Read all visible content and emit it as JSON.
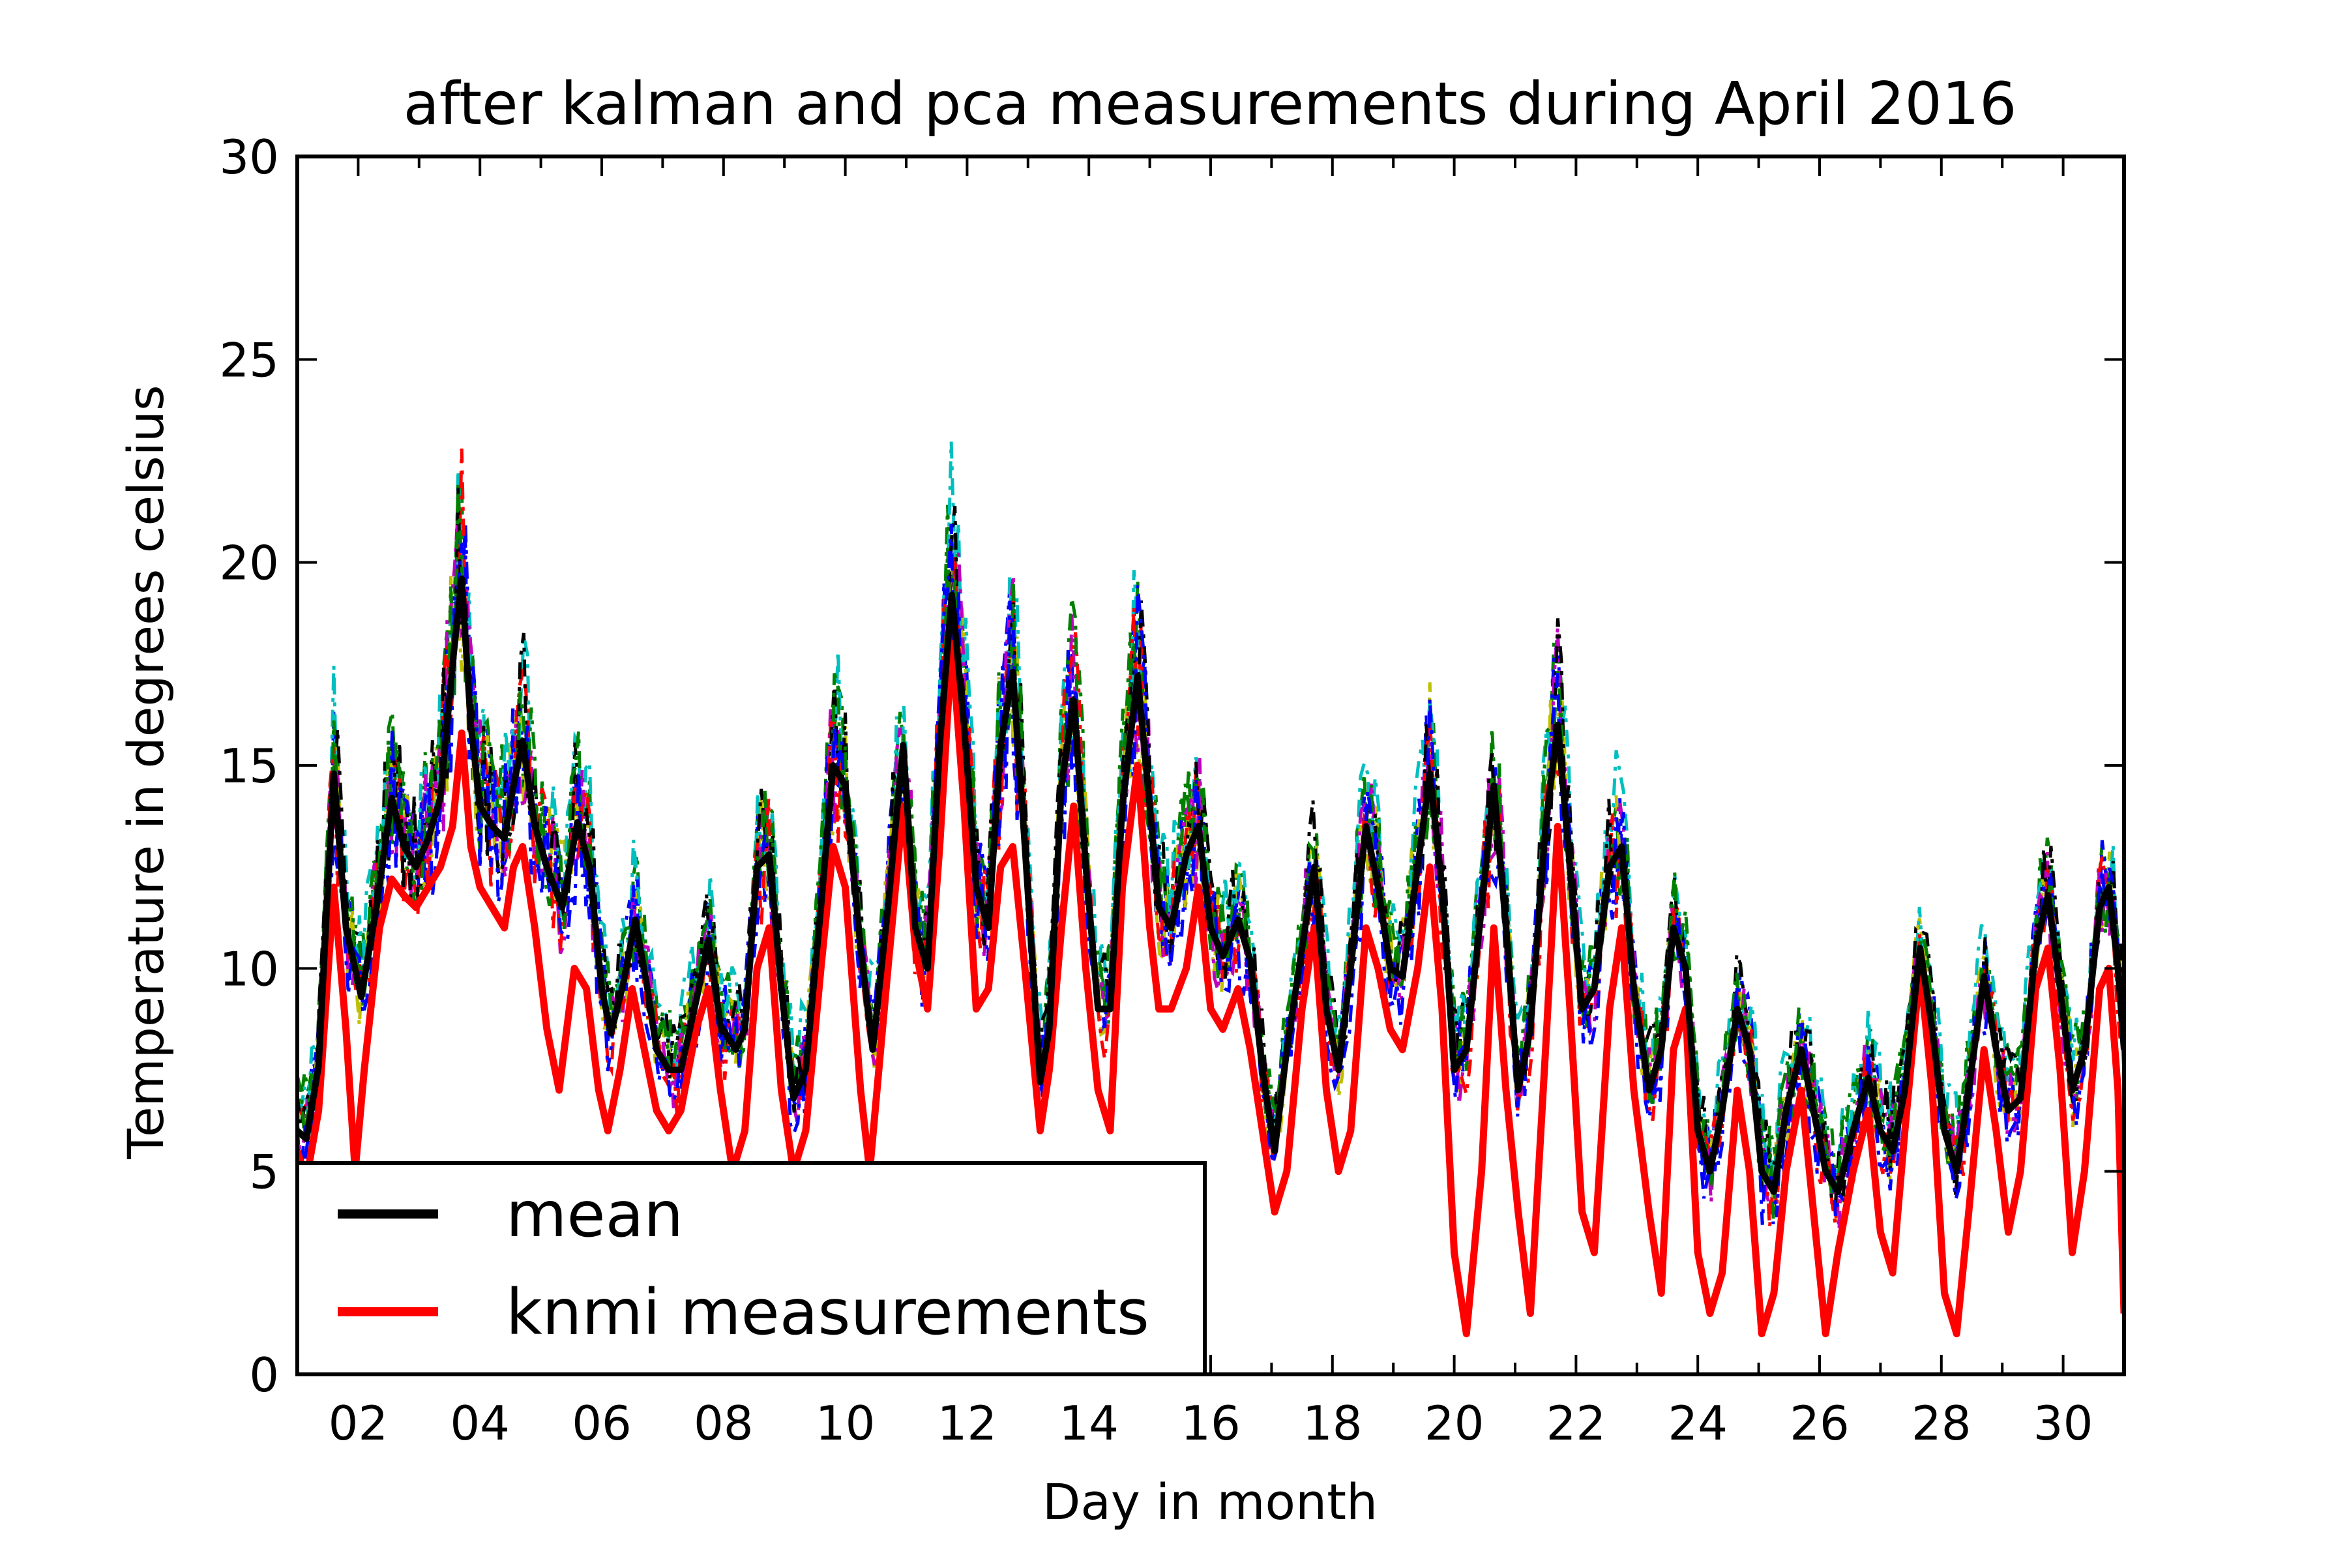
{
  "chart_data": {
    "type": "line",
    "title": "after kalman and pca measurements during April 2016",
    "xlabel": "Day in month",
    "ylabel": "Temperature in degrees celsius",
    "xlim": [
      1.0,
      31.0
    ],
    "ylim": [
      0,
      30
    ],
    "x_ticks": [
      "02",
      "04",
      "06",
      "08",
      "10",
      "12",
      "14",
      "16",
      "18",
      "20",
      "22",
      "24",
      "26",
      "28",
      "30"
    ],
    "y_ticks": [
      "0",
      "5",
      "10",
      "15",
      "20",
      "25",
      "30"
    ],
    "legend": {
      "placement": "lower-left"
    },
    "grid": false,
    "series": [
      {
        "name": "mean",
        "color": "#000000",
        "style": "solid",
        "points": [
          [
            1.0,
            6.0
          ],
          [
            1.15,
            5.8
          ],
          [
            1.35,
            7.6
          ],
          [
            1.6,
            14.8
          ],
          [
            1.8,
            11.0
          ],
          [
            2.05,
            9.3
          ],
          [
            2.3,
            11.5
          ],
          [
            2.55,
            14.2
          ],
          [
            2.75,
            13.0
          ],
          [
            2.95,
            12.5
          ],
          [
            3.15,
            13.2
          ],
          [
            3.35,
            14.2
          ],
          [
            3.55,
            17.5
          ],
          [
            3.7,
            19.6
          ],
          [
            3.85,
            16.0
          ],
          [
            4.0,
            14.0
          ],
          [
            4.2,
            13.5
          ],
          [
            4.4,
            13.2
          ],
          [
            4.55,
            14.5
          ],
          [
            4.7,
            15.6
          ],
          [
            4.9,
            13.5
          ],
          [
            5.1,
            12.5
          ],
          [
            5.35,
            11.5
          ],
          [
            5.6,
            13.6
          ],
          [
            5.8,
            12.5
          ],
          [
            6.0,
            9.5
          ],
          [
            6.15,
            8.4
          ],
          [
            6.35,
            9.6
          ],
          [
            6.55,
            11.2
          ],
          [
            6.75,
            9.5
          ],
          [
            6.9,
            8.0
          ],
          [
            7.1,
            7.5
          ],
          [
            7.3,
            7.5
          ],
          [
            7.55,
            9.2
          ],
          [
            7.75,
            10.7
          ],
          [
            7.95,
            8.6
          ],
          [
            8.2,
            8.0
          ],
          [
            8.35,
            8.5
          ],
          [
            8.55,
            12.5
          ],
          [
            8.75,
            12.8
          ],
          [
            8.95,
            9.5
          ],
          [
            9.15,
            6.8
          ],
          [
            9.35,
            7.5
          ],
          [
            9.6,
            11.5
          ],
          [
            9.8,
            15.0
          ],
          [
            10.0,
            14.5
          ],
          [
            10.25,
            10.5
          ],
          [
            10.45,
            8.0
          ],
          [
            10.7,
            11.5
          ],
          [
            10.95,
            15.5
          ],
          [
            11.15,
            11.0
          ],
          [
            11.35,
            10.0
          ],
          [
            11.55,
            15.5
          ],
          [
            11.75,
            19.2
          ],
          [
            11.95,
            16.0
          ],
          [
            12.15,
            12.0
          ],
          [
            12.35,
            11.0
          ],
          [
            12.55,
            15.5
          ],
          [
            12.75,
            17.3
          ],
          [
            12.95,
            13.0
          ],
          [
            13.2,
            7.2
          ],
          [
            13.35,
            8.5
          ],
          [
            13.55,
            14.5
          ],
          [
            13.75,
            16.6
          ],
          [
            13.95,
            12.5
          ],
          [
            14.15,
            9.0
          ],
          [
            14.35,
            9.0
          ],
          [
            14.55,
            14.0
          ],
          [
            14.8,
            17.2
          ],
          [
            15.0,
            14.0
          ],
          [
            15.15,
            11.5
          ],
          [
            15.35,
            11.0
          ],
          [
            15.6,
            12.8
          ],
          [
            15.8,
            13.5
          ],
          [
            16.0,
            11.0
          ],
          [
            16.2,
            10.3
          ],
          [
            16.45,
            11.2
          ],
          [
            16.65,
            10.2
          ],
          [
            16.85,
            7.5
          ],
          [
            17.05,
            5.5
          ],
          [
            17.25,
            8.0
          ],
          [
            17.5,
            10.5
          ],
          [
            17.7,
            12.5
          ],
          [
            17.9,
            9.0
          ],
          [
            18.1,
            7.5
          ],
          [
            18.3,
            10.0
          ],
          [
            18.55,
            13.5
          ],
          [
            18.75,
            12.0
          ],
          [
            18.95,
            10.0
          ],
          [
            19.15,
            9.8
          ],
          [
            19.4,
            12.5
          ],
          [
            19.6,
            14.8
          ],
          [
            19.8,
            12.0
          ],
          [
            20.0,
            7.5
          ],
          [
            20.2,
            8.0
          ],
          [
            20.45,
            11.5
          ],
          [
            20.65,
            14.5
          ],
          [
            20.85,
            11.0
          ],
          [
            21.05,
            7.0
          ],
          [
            21.25,
            8.5
          ],
          [
            21.5,
            13.5
          ],
          [
            21.7,
            16.0
          ],
          [
            21.9,
            12.5
          ],
          [
            22.1,
            9.0
          ],
          [
            22.3,
            9.5
          ],
          [
            22.55,
            12.5
          ],
          [
            22.75,
            13.0
          ],
          [
            22.95,
            9.5
          ],
          [
            23.2,
            7.0
          ],
          [
            23.4,
            8.0
          ],
          [
            23.6,
            11.0
          ],
          [
            23.8,
            10.0
          ],
          [
            24.0,
            6.0
          ],
          [
            24.2,
            5.0
          ],
          [
            24.4,
            6.5
          ],
          [
            24.65,
            9.0
          ],
          [
            24.85,
            8.0
          ],
          [
            25.05,
            5.0
          ],
          [
            25.25,
            4.5
          ],
          [
            25.45,
            6.5
          ],
          [
            25.7,
            8.0
          ],
          [
            25.9,
            6.5
          ],
          [
            26.1,
            5.0
          ],
          [
            26.3,
            4.5
          ],
          [
            26.55,
            6.0
          ],
          [
            26.8,
            7.3
          ],
          [
            27.0,
            6.0
          ],
          [
            27.2,
            5.5
          ],
          [
            27.4,
            7.0
          ],
          [
            27.65,
            10.5
          ],
          [
            27.85,
            8.5
          ],
          [
            28.05,
            6.0
          ],
          [
            28.25,
            5.0
          ],
          [
            28.45,
            7.0
          ],
          [
            28.7,
            9.8
          ],
          [
            28.9,
            8.0
          ],
          [
            29.1,
            6.5
          ],
          [
            29.3,
            6.8
          ],
          [
            29.55,
            10.5
          ],
          [
            29.75,
            11.8
          ],
          [
            29.95,
            9.5
          ],
          [
            30.15,
            7.0
          ],
          [
            30.35,
            8.0
          ],
          [
            30.6,
            11.5
          ],
          [
            30.75,
            12.0
          ],
          [
            30.9,
            10.0
          ],
          [
            31.0,
            8.0
          ]
        ]
      },
      {
        "name": "knmi measurements",
        "color": "#ff0000",
        "style": "solid",
        "points": [
          [
            1.0,
            5.5
          ],
          [
            1.15,
            4.8
          ],
          [
            1.35,
            6.5
          ],
          [
            1.6,
            12.0
          ],
          [
            1.8,
            8.5
          ],
          [
            1.95,
            5.0
          ],
          [
            2.1,
            7.5
          ],
          [
            2.35,
            11.0
          ],
          [
            2.55,
            12.2
          ],
          [
            2.75,
            11.8
          ],
          [
            2.95,
            11.5
          ],
          [
            3.15,
            12.0
          ],
          [
            3.35,
            12.5
          ],
          [
            3.55,
            13.5
          ],
          [
            3.7,
            15.8
          ],
          [
            3.85,
            13.0
          ],
          [
            4.0,
            12.0
          ],
          [
            4.2,
            11.5
          ],
          [
            4.4,
            11.0
          ],
          [
            4.55,
            12.5
          ],
          [
            4.7,
            13.0
          ],
          [
            4.9,
            11.0
          ],
          [
            5.1,
            8.5
          ],
          [
            5.3,
            7.0
          ],
          [
            5.55,
            10.0
          ],
          [
            5.75,
            9.5
          ],
          [
            5.95,
            7.0
          ],
          [
            6.1,
            6.0
          ],
          [
            6.3,
            7.5
          ],
          [
            6.5,
            9.5
          ],
          [
            6.7,
            8.0
          ],
          [
            6.9,
            6.5
          ],
          [
            7.1,
            6.0
          ],
          [
            7.3,
            6.5
          ],
          [
            7.55,
            8.5
          ],
          [
            7.75,
            9.5
          ],
          [
            7.95,
            7.0
          ],
          [
            8.15,
            5.0
          ],
          [
            8.35,
            6.0
          ],
          [
            8.55,
            10.0
          ],
          [
            8.75,
            11.0
          ],
          [
            8.95,
            7.0
          ],
          [
            9.15,
            5.0
          ],
          [
            9.35,
            6.0
          ],
          [
            9.6,
            10.0
          ],
          [
            9.8,
            13.0
          ],
          [
            10.0,
            12.0
          ],
          [
            10.25,
            7.0
          ],
          [
            10.4,
            5.0
          ],
          [
            10.7,
            10.0
          ],
          [
            10.95,
            14.0
          ],
          [
            11.15,
            10.5
          ],
          [
            11.35,
            9.0
          ],
          [
            11.55,
            13.0
          ],
          [
            11.75,
            18.0
          ],
          [
            11.95,
            14.0
          ],
          [
            12.15,
            9.0
          ],
          [
            12.35,
            9.5
          ],
          [
            12.55,
            12.5
          ],
          [
            12.75,
            13.0
          ],
          [
            12.95,
            10.0
          ],
          [
            13.2,
            6.0
          ],
          [
            13.35,
            7.5
          ],
          [
            13.55,
            11.0
          ],
          [
            13.75,
            14.0
          ],
          [
            13.95,
            10.0
          ],
          [
            14.15,
            7.0
          ],
          [
            14.35,
            6.0
          ],
          [
            14.55,
            12.0
          ],
          [
            14.8,
            15.0
          ],
          [
            15.0,
            11.0
          ],
          [
            15.15,
            9.0
          ],
          [
            15.35,
            9.0
          ],
          [
            15.6,
            10.0
          ],
          [
            15.8,
            12.0
          ],
          [
            16.0,
            9.0
          ],
          [
            16.2,
            8.5
          ],
          [
            16.45,
            9.5
          ],
          [
            16.65,
            8.0
          ],
          [
            16.85,
            6.0
          ],
          [
            17.05,
            4.0
          ],
          [
            17.25,
            5.0
          ],
          [
            17.5,
            9.0
          ],
          [
            17.7,
            11.0
          ],
          [
            17.9,
            7.0
          ],
          [
            18.1,
            5.0
          ],
          [
            18.3,
            6.0
          ],
          [
            18.55,
            11.0
          ],
          [
            18.75,
            10.0
          ],
          [
            18.95,
            8.5
          ],
          [
            19.15,
            8.0
          ],
          [
            19.4,
            10.0
          ],
          [
            19.6,
            12.5
          ],
          [
            19.8,
            9.0
          ],
          [
            20.0,
            3.0
          ],
          [
            20.2,
            1.0
          ],
          [
            20.45,
            5.0
          ],
          [
            20.65,
            11.0
          ],
          [
            20.85,
            7.0
          ],
          [
            21.05,
            4.0
          ],
          [
            21.25,
            1.5
          ],
          [
            21.5,
            8.0
          ],
          [
            21.7,
            13.5
          ],
          [
            21.9,
            9.0
          ],
          [
            22.1,
            4.0
          ],
          [
            22.3,
            3.0
          ],
          [
            22.55,
            9.0
          ],
          [
            22.75,
            11.0
          ],
          [
            22.95,
            7.0
          ],
          [
            23.2,
            4.0
          ],
          [
            23.4,
            2.0
          ],
          [
            23.6,
            8.0
          ],
          [
            23.8,
            9.0
          ],
          [
            24.0,
            3.0
          ],
          [
            24.2,
            1.5
          ],
          [
            24.4,
            2.5
          ],
          [
            24.65,
            7.0
          ],
          [
            24.85,
            5.0
          ],
          [
            25.05,
            1.0
          ],
          [
            25.25,
            2.0
          ],
          [
            25.45,
            5.0
          ],
          [
            25.7,
            7.0
          ],
          [
            25.9,
            4.0
          ],
          [
            26.1,
            1.0
          ],
          [
            26.3,
            3.0
          ],
          [
            26.55,
            5.0
          ],
          [
            26.8,
            6.5
          ],
          [
            27.0,
            3.5
          ],
          [
            27.2,
            2.5
          ],
          [
            27.4,
            6.0
          ],
          [
            27.65,
            10.0
          ],
          [
            27.85,
            7.0
          ],
          [
            28.05,
            2.0
          ],
          [
            28.25,
            1.0
          ],
          [
            28.45,
            4.0
          ],
          [
            28.7,
            8.0
          ],
          [
            28.9,
            6.0
          ],
          [
            29.1,
            3.5
          ],
          [
            29.3,
            5.0
          ],
          [
            29.55,
            9.5
          ],
          [
            29.75,
            10.5
          ],
          [
            29.95,
            7.5
          ],
          [
            30.15,
            3.0
          ],
          [
            30.35,
            5.0
          ],
          [
            30.6,
            9.5
          ],
          [
            30.75,
            10.0
          ],
          [
            30.9,
            7.0
          ],
          [
            31.0,
            1.5
          ]
        ]
      }
    ],
    "extra_series_colors": [
      "#008000",
      "#0000ff",
      "#bfbf00",
      "#00bfbf",
      "#bf00bf",
      "#ff0000",
      "#000000",
      "#008000",
      "#0000ff"
    ]
  }
}
